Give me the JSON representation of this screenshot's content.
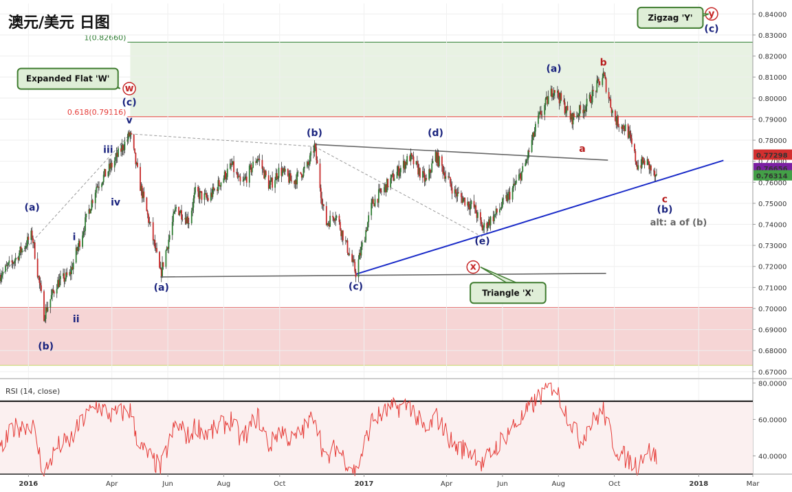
{
  "chart_data": [
    {
      "type": "candlestick",
      "title": "澳元/美元 日图",
      "x_ticks": [
        "2016",
        "Apr",
        "Jun",
        "Aug",
        "Oct",
        "2017",
        "Apr",
        "Jun",
        "Aug",
        "Oct",
        "2018",
        "Mar"
      ],
      "y_ticks": [
        "0.84000",
        "0.83000",
        "0.82000",
        "0.81000",
        "0.80000",
        "0.79000",
        "0.78000",
        "0.77000",
        "0.76000",
        "0.75000",
        "0.74000",
        "0.73000",
        "0.72000",
        "0.71000",
        "0.70000",
        "0.69000",
        "0.68000",
        "0.67000"
      ],
      "ylim": [
        0.667,
        0.845
      ],
      "price_tags": [
        {
          "label": "0.77298",
          "value": 0.77298,
          "color": "#d32f2f"
        },
        {
          "label": "0.76656",
          "value": 0.76656,
          "color": "#7b1fa2"
        },
        {
          "label": "0.76314",
          "value": 0.76314,
          "color": "#43a047"
        }
      ],
      "fib_levels": [
        {
          "label": "1(0.82660)",
          "value": 0.8266,
          "color": "#2e7d32"
        },
        {
          "label": "0.618(0.79116)",
          "value": 0.79116,
          "color": "#e53935"
        }
      ],
      "zones": [
        {
          "name": "green-zone",
          "from": 0.79116,
          "to": 0.8266,
          "color": "#e8f2e3"
        },
        {
          "name": "red-zone",
          "from": 0.673,
          "to": 0.7005,
          "color": "#f6d5d5"
        }
      ],
      "path": [
        [
          "2015-12-01",
          0.716
        ],
        [
          "2015-12-15",
          0.722
        ],
        [
          "2016-01-05",
          0.735
        ],
        [
          "2016-01-18",
          0.697
        ],
        [
          "2016-02-01",
          0.712
        ],
        [
          "2016-02-15",
          0.716
        ],
        [
          "2016-03-01",
          0.738
        ],
        [
          "2016-03-15",
          0.758
        ],
        [
          "2016-04-01",
          0.768
        ],
        [
          "2016-04-21",
          0.783
        ],
        [
          "2016-05-01",
          0.76
        ],
        [
          "2016-05-15",
          0.735
        ],
        [
          "2016-05-24",
          0.716
        ],
        [
          "2016-06-10",
          0.748
        ],
        [
          "2016-06-24",
          0.742
        ],
        [
          "2016-07-01",
          0.755
        ],
        [
          "2016-07-15",
          0.752
        ],
        [
          "2016-08-10",
          0.768
        ],
        [
          "2016-08-20",
          0.758
        ],
        [
          "2016-09-07",
          0.772
        ],
        [
          "2016-09-20",
          0.758
        ],
        [
          "2016-10-01",
          0.766
        ],
        [
          "2016-10-15",
          0.76
        ],
        [
          "2016-11-01",
          0.768
        ],
        [
          "2016-11-08",
          0.777
        ],
        [
          "2016-11-20",
          0.74
        ],
        [
          "2016-12-01",
          0.745
        ],
        [
          "2016-12-23",
          0.717
        ],
        [
          "2017-01-10",
          0.75
        ],
        [
          "2017-02-01",
          0.762
        ],
        [
          "2017-02-20",
          0.772
        ],
        [
          "2017-03-10",
          0.76
        ],
        [
          "2017-03-20",
          0.773
        ],
        [
          "2017-04-10",
          0.755
        ],
        [
          "2017-05-01",
          0.748
        ],
        [
          "2017-05-10",
          0.738
        ],
        [
          "2017-05-25",
          0.745
        ],
        [
          "2017-06-10",
          0.755
        ],
        [
          "2017-06-25",
          0.767
        ],
        [
          "2017-07-10",
          0.79
        ],
        [
          "2017-07-27",
          0.805
        ],
        [
          "2017-08-15",
          0.79
        ],
        [
          "2017-09-01",
          0.797
        ],
        [
          "2017-09-19",
          0.811
        ],
        [
          "2017-10-01",
          0.79
        ],
        [
          "2017-10-15",
          0.785
        ],
        [
          "2017-10-26",
          0.768
        ],
        [
          "2017-11-05",
          0.77
        ],
        [
          "2017-11-16",
          0.761
        ]
      ],
      "wave_labels": [
        {
          "text": "(a)",
          "date": "2016-01-05",
          "value": 0.7465,
          "color": "#1a237e"
        },
        {
          "text": "(b)",
          "date": "2016-01-20",
          "value": 0.6805,
          "color": "#1a237e"
        },
        {
          "text": "i",
          "date": "2016-02-20",
          "value": 0.7325,
          "color": "#1a237e"
        },
        {
          "text": "ii",
          "date": "2016-02-22",
          "value": 0.6935,
          "color": "#1a237e"
        },
        {
          "text": "iii",
          "date": "2016-03-28",
          "value": 0.774,
          "color": "#1a237e"
        },
        {
          "text": "iv",
          "date": "2016-04-05",
          "value": 0.749,
          "color": "#1a237e"
        },
        {
          "text": "v",
          "date": "2016-04-20",
          "value": 0.788,
          "color": "#1a237e"
        },
        {
          "text": "(c)",
          "date": "2016-04-20",
          "value": 0.7965,
          "color": "#1a237e"
        },
        {
          "text": "(a)",
          "date": "2016-05-25",
          "value": 0.7085,
          "color": "#1a237e"
        },
        {
          "text": "(b)",
          "date": "2016-11-08",
          "value": 0.782,
          "color": "#1a237e"
        },
        {
          "text": "(c)",
          "date": "2016-12-23",
          "value": 0.709,
          "color": "#1a237e"
        },
        {
          "text": "(d)",
          "date": "2017-03-20",
          "value": 0.782,
          "color": "#1a237e"
        },
        {
          "text": "(e)",
          "date": "2017-05-10",
          "value": 0.7305,
          "color": "#1a237e"
        },
        {
          "text": "(a)",
          "date": "2017-07-27",
          "value": 0.8125,
          "color": "#1a237e"
        },
        {
          "text": "b",
          "date": "2017-09-19",
          "value": 0.8155,
          "color": "#b71c1c"
        },
        {
          "text": "a",
          "date": "2017-08-27",
          "value": 0.7745,
          "color": "#b71c1c"
        },
        {
          "text": "c",
          "date": "2017-11-25",
          "value": 0.7505,
          "color": "#b71c1c"
        },
        {
          "text": "(b)",
          "date": "2017-11-25",
          "value": 0.7455,
          "color": "#1a237e"
        },
        {
          "text": "(c)",
          "date": "2018-01-15",
          "value": 0.8315,
          "color": "#1a237e"
        }
      ],
      "circled_labels": [
        {
          "text": "w",
          "date": "2016-04-20",
          "value": 0.8045
        },
        {
          "text": "x",
          "date": "2017-04-30",
          "value": 0.7197
        },
        {
          "text": "y",
          "date": "2018-01-15",
          "value": 0.84
        }
      ],
      "alt_note": {
        "text": "alt: a of (b)",
        "date": "2017-12-10",
        "value": 0.7395
      },
      "callouts": [
        {
          "text": "Expanded Flat 'W'",
          "date": "2016-02-13",
          "value": 0.8092,
          "target_date": "2016-04-10",
          "target_value": 0.8045
        },
        {
          "text": "Triangle 'X'",
          "date": "2017-06-07",
          "value": 0.7074,
          "target_date": "2017-05-08",
          "target_value": 0.7197
        },
        {
          "text": "Zigzag 'Y'",
          "date": "2017-12-01",
          "value": 0.8382,
          "target_date": "2018-01-12",
          "target_value": 0.84
        }
      ],
      "lines": [
        {
          "name": "triangle-top",
          "color": "#666",
          "from": [
            "2016-11-08",
            0.778
          ],
          "to": [
            "2017-09-24",
            0.7705
          ]
        },
        {
          "name": "triangle-bottom",
          "color": "#666",
          "from": [
            "2016-05-24",
            0.715
          ],
          "to": [
            "2017-09-22",
            0.7167
          ]
        },
        {
          "name": "blue-trendline",
          "color": "#1a2bc8",
          "from": [
            "2016-12-23",
            0.7163
          ],
          "to": [
            "2018-01-28",
            0.7704
          ]
        },
        {
          "name": "dashed-1",
          "color": "#999",
          "from": [
            "2015-12-01",
            0.715
          ],
          "to": [
            "2016-04-21",
            0.783
          ]
        },
        {
          "name": "dashed-2",
          "color": "#999",
          "from": [
            "2016-04-21",
            0.783
          ],
          "to": [
            "2016-11-08",
            0.777
          ]
        },
        {
          "name": "dashed-3",
          "color": "#999",
          "from": [
            "2016-11-08",
            0.777
          ],
          "to": [
            "2017-05-10",
            0.734
          ]
        }
      ]
    },
    {
      "type": "line",
      "title": "RSI (14, close)",
      "y_ticks": [
        "80.0000",
        "60.0000",
        "40.0000"
      ],
      "ylim": [
        30,
        82
      ],
      "hlines": [
        70,
        30
      ],
      "path": [
        [
          "2015-12-01",
          42
        ],
        [
          "2015-12-15",
          55
        ],
        [
          "2016-01-05",
          58
        ],
        [
          "2016-01-18",
          30
        ],
        [
          "2016-02-01",
          45
        ],
        [
          "2016-02-15",
          48
        ],
        [
          "2016-03-01",
          60
        ],
        [
          "2016-03-15",
          68
        ],
        [
          "2016-04-01",
          62
        ],
        [
          "2016-04-21",
          65
        ],
        [
          "2016-05-01",
          45
        ],
        [
          "2016-05-15",
          38
        ],
        [
          "2016-05-24",
          33
        ],
        [
          "2016-06-10",
          58
        ],
        [
          "2016-06-24",
          50
        ],
        [
          "2016-07-01",
          57
        ],
        [
          "2016-07-15",
          52
        ],
        [
          "2016-08-10",
          60
        ],
        [
          "2016-08-20",
          48
        ],
        [
          "2016-09-07",
          62
        ],
        [
          "2016-09-20",
          45
        ],
        [
          "2016-10-01",
          55
        ],
        [
          "2016-10-15",
          48
        ],
        [
          "2016-11-01",
          57
        ],
        [
          "2016-11-08",
          64
        ],
        [
          "2016-11-20",
          36
        ],
        [
          "2016-12-01",
          45
        ],
        [
          "2016-12-23",
          31
        ],
        [
          "2017-01-10",
          60
        ],
        [
          "2017-02-01",
          66
        ],
        [
          "2017-02-20",
          68
        ],
        [
          "2017-03-10",
          52
        ],
        [
          "2017-03-20",
          62
        ],
        [
          "2017-04-10",
          45
        ],
        [
          "2017-05-01",
          42
        ],
        [
          "2017-05-10",
          35
        ],
        [
          "2017-05-25",
          45
        ],
        [
          "2017-06-10",
          55
        ],
        [
          "2017-06-25",
          62
        ],
        [
          "2017-07-10",
          72
        ],
        [
          "2017-07-27",
          79
        ],
        [
          "2017-08-15",
          58
        ],
        [
          "2017-08-25",
          48
        ],
        [
          "2017-09-01",
          55
        ],
        [
          "2017-09-19",
          65
        ],
        [
          "2017-10-01",
          45
        ],
        [
          "2017-10-15",
          38
        ],
        [
          "2017-10-26",
          35
        ],
        [
          "2017-11-05",
          44
        ],
        [
          "2017-11-16",
          39
        ]
      ]
    }
  ]
}
